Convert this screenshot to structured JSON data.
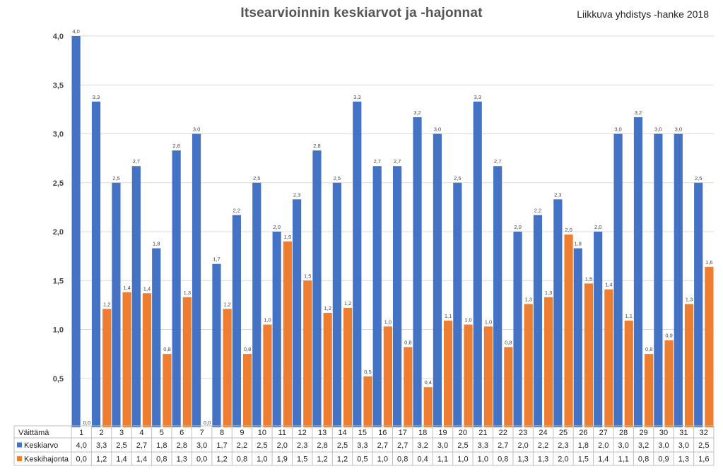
{
  "chart_data": {
    "type": "bar",
    "title": "Itsearvioinnin keskiarvot ja -hajonnat",
    "subtitle": "Liikkuva yhdistys -hanke 2018",
    "ylim": [
      0,
      4
    ],
    "yticks": [
      "4,0",
      "3,5",
      "3,0",
      "2,5",
      "2,0",
      "1,5",
      "1,0",
      "0,5"
    ],
    "grid": true,
    "legend": "data-table",
    "table_header": "Väittämä",
    "categories": [
      "1",
      "2",
      "3",
      "4",
      "5",
      "6",
      "7",
      "8",
      "9",
      "10",
      "11",
      "12",
      "13",
      "14",
      "15",
      "16",
      "17",
      "18",
      "19",
      "20",
      "21",
      "22",
      "23",
      "24",
      "25",
      "26",
      "27",
      "28",
      "29",
      "30",
      "31",
      "32"
    ],
    "series": [
      {
        "name": "Keskiarvo",
        "color": "#4472c4",
        "values": [
          4.0,
          3.33,
          2.5,
          2.67,
          1.83,
          2.83,
          3.0,
          1.67,
          2.17,
          2.5,
          2.0,
          2.33,
          2.83,
          2.5,
          3.33,
          2.67,
          2.67,
          3.17,
          3.0,
          2.5,
          3.33,
          2.67,
          2.0,
          2.17,
          2.33,
          1.83,
          2.0,
          3.0,
          3.17,
          3.0,
          3.0,
          2.5
        ],
        "labels": [
          "4,0",
          "3,3",
          "2,5",
          "2,7",
          "1,8",
          "2,8",
          "3,0",
          "1,7",
          "2,2",
          "2,5",
          "2,0",
          "2,3",
          "2,8",
          "2,5",
          "3,3",
          "2,7",
          "2,7",
          "3,2",
          "3,0",
          "2,5",
          "3,3",
          "2,7",
          "2,0",
          "2,2",
          "2,3",
          "1,8",
          "2,0",
          "3,0",
          "3,2",
          "3,0",
          "3,0",
          "2,5"
        ]
      },
      {
        "name": "Keskihajonta",
        "color": "#ed7d31",
        "values": [
          0.0,
          1.21,
          1.38,
          1.37,
          0.75,
          1.33,
          0.0,
          1.21,
          0.75,
          1.05,
          1.9,
          1.5,
          1.17,
          1.22,
          0.52,
          1.03,
          0.82,
          0.41,
          1.09,
          1.05,
          1.03,
          0.82,
          1.26,
          1.33,
          1.97,
          1.47,
          1.41,
          1.09,
          0.75,
          0.89,
          1.26,
          1.64
        ],
        "labels": [
          "0,0",
          "1,2",
          "1,4",
          "1,4",
          "0,8",
          "1,3",
          "0,0",
          "1,2",
          "0,8",
          "1,0",
          "1,9",
          "1,5",
          "1,2",
          "1,2",
          "0,5",
          "1,0",
          "0,8",
          "0,4",
          "1,1",
          "1,0",
          "1,0",
          "0,8",
          "1,3",
          "1,3",
          "2,0",
          "1,5",
          "1,4",
          "1,1",
          "0,8",
          "0,9",
          "1,3",
          "1,6"
        ]
      }
    ]
  }
}
